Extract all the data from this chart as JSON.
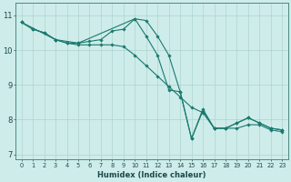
{
  "xlabel": "Humidex (Indice chaleur)",
  "background_color": "#ceecea",
  "grid_color": "#aed4d0",
  "line_color": "#1a7a6e",
  "xlim": [
    -0.5,
    23.5
  ],
  "ylim": [
    6.85,
    11.35
  ],
  "yticks": [
    7,
    8,
    9,
    10,
    11
  ],
  "xticks": [
    0,
    1,
    2,
    3,
    4,
    5,
    6,
    7,
    8,
    9,
    10,
    11,
    12,
    13,
    14,
    15,
    16,
    17,
    18,
    19,
    20,
    21,
    22,
    23
  ],
  "series1_x": [
    0,
    1,
    2,
    3,
    4,
    5,
    6,
    7,
    8,
    9,
    10,
    11,
    12,
    13,
    14,
    15,
    16,
    17,
    18,
    19,
    20,
    21,
    22,
    23
  ],
  "series1_y": [
    10.8,
    10.6,
    10.5,
    10.3,
    10.2,
    10.2,
    10.25,
    10.3,
    10.55,
    10.6,
    10.9,
    10.85,
    10.4,
    9.85,
    8.8,
    7.45,
    8.3,
    7.75,
    7.75,
    7.9,
    8.05,
    7.9,
    7.75,
    7.7
  ],
  "series2_x": [
    0,
    1,
    2,
    3,
    4,
    5,
    6,
    7,
    8,
    9,
    10,
    11,
    12,
    13,
    14,
    15,
    16,
    17,
    18,
    19,
    20,
    21,
    22,
    23
  ],
  "series2_y": [
    10.8,
    10.6,
    10.5,
    10.3,
    10.2,
    10.15,
    10.15,
    10.15,
    10.15,
    10.1,
    9.85,
    9.55,
    9.25,
    8.95,
    8.65,
    8.35,
    8.2,
    7.75,
    7.75,
    7.75,
    7.85,
    7.85,
    7.7,
    7.65
  ],
  "series3_x": [
    0,
    3,
    5,
    10,
    11,
    12,
    13,
    14,
    15,
    16,
    17,
    18,
    19,
    20,
    21,
    22,
    23
  ],
  "series3_y": [
    10.8,
    10.3,
    10.2,
    10.9,
    10.4,
    9.85,
    8.85,
    8.8,
    7.45,
    8.25,
    7.75,
    7.75,
    7.9,
    8.05,
    7.9,
    7.75,
    7.7
  ]
}
